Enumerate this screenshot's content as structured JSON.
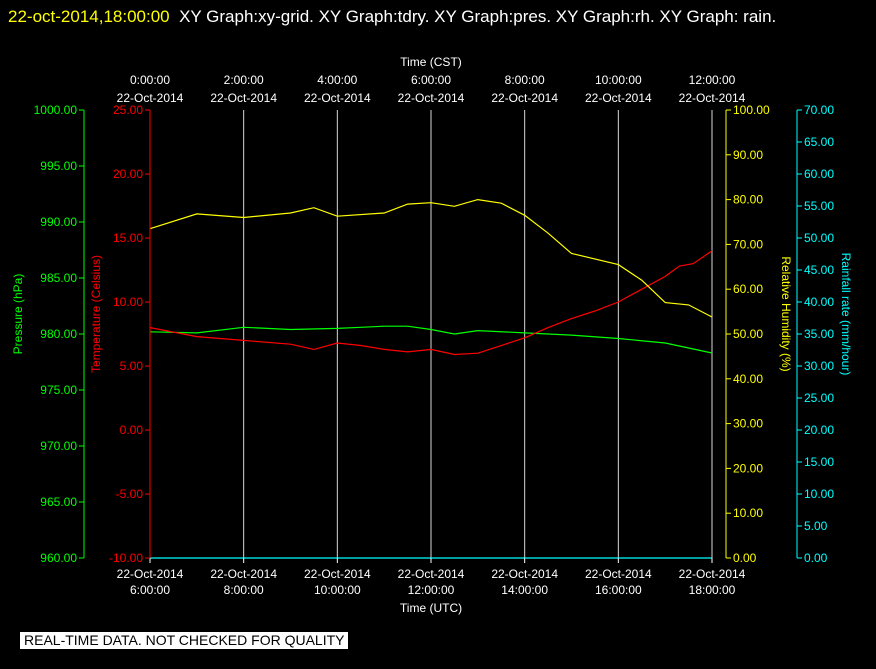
{
  "header": {
    "timestamp": "22-oct-2014,18:00:00",
    "graphs": "XY Graph:xy-grid.  XY Graph:tdry.  XY Graph:pres.  XY Graph:rh.  XY Graph: rain."
  },
  "notice": "REAL-TIME DATA. NOT CHECKED FOR QUALITY",
  "colors": {
    "pressure": "#00ff00",
    "temperature": "#ff0000",
    "humidity": "#ffff00",
    "rainfall": "#00ffff",
    "grid": "#ffffff",
    "background": "#000000"
  },
  "chart_data": {
    "type": "line",
    "x_top": {
      "label": "Time (CST)",
      "ticks": [
        {
          "time": "0:00:00",
          "date": "22-Oct-2014"
        },
        {
          "time": "2:00:00",
          "date": "22-Oct-2014"
        },
        {
          "time": "4:00:00",
          "date": "22-Oct-2014"
        },
        {
          "time": "6:00:00",
          "date": "22-Oct-2014"
        },
        {
          "time": "8:00:00",
          "date": "22-Oct-2014"
        },
        {
          "time": "10:00:00",
          "date": "22-Oct-2014"
        },
        {
          "time": "12:00:00",
          "date": "22-Oct-2014"
        }
      ]
    },
    "x_bottom": {
      "label": "Time (UTC)",
      "ticks": [
        {
          "date": "22-Oct-2014",
          "time": "6:00:00"
        },
        {
          "date": "22-Oct-2014",
          "time": "8:00:00"
        },
        {
          "date": "22-Oct-2014",
          "time": "10:00:00"
        },
        {
          "date": "22-Oct-2014",
          "time": "12:00:00"
        },
        {
          "date": "22-Oct-2014",
          "time": "14:00:00"
        },
        {
          "date": "22-Oct-2014",
          "time": "16:00:00"
        },
        {
          "date": "22-Oct-2014",
          "time": "18:00:00"
        }
      ]
    },
    "axes": {
      "pressure": {
        "label": "Pressure (hPa)",
        "range": [
          960,
          1000
        ],
        "ticks": [
          "960.00",
          "965.00",
          "970.00",
          "975.00",
          "980.00",
          "985.00",
          "990.00",
          "995.00",
          "1000.00"
        ]
      },
      "temperature": {
        "label": "Temperature (Celsius)",
        "range": [
          -10,
          25
        ],
        "ticks": [
          "-10.00",
          "-5.00",
          "0.00",
          "5.00",
          "10.00",
          "15.00",
          "20.00",
          "25.00"
        ]
      },
      "humidity": {
        "label": "Relative Humidity (%)",
        "range": [
          0,
          100
        ],
        "ticks": [
          "0.00",
          "10.00",
          "20.00",
          "30.00",
          "40.00",
          "50.00",
          "60.00",
          "70.00",
          "80.00",
          "90.00",
          "100.00"
        ]
      },
      "rainfall": {
        "label": "Rainfall rate (mm/hour)",
        "range": [
          0,
          70
        ],
        "ticks": [
          "0.00",
          "5.00",
          "10.00",
          "15.00",
          "20.00",
          "25.00",
          "30.00",
          "35.00",
          "40.00",
          "45.00",
          "50.00",
          "55.00",
          "60.00",
          "65.00",
          "70.00"
        ]
      }
    },
    "x_range_utc_hours": [
      6,
      18
    ],
    "grid": true,
    "series": [
      {
        "key": "pressure",
        "axis": "pressure",
        "x": [
          6.0,
          7.0,
          8.0,
          9.0,
          10.0,
          10.5,
          11.0,
          11.5,
          12.0,
          12.5,
          13.0,
          14.0,
          15.0,
          16.0,
          17.0,
          18.0
        ],
        "y": [
          980.2,
          980.1,
          980.6,
          980.4,
          980.5,
          980.6,
          980.7,
          980.7,
          980.4,
          980.0,
          980.3,
          980.1,
          979.9,
          979.6,
          979.2,
          978.3
        ]
      },
      {
        "key": "temperature",
        "axis": "temperature",
        "x": [
          6.0,
          7.0,
          8.0,
          9.0,
          9.5,
          10.0,
          10.5,
          11.0,
          11.5,
          12.0,
          12.5,
          13.0,
          14.0,
          14.5,
          15.0,
          15.5,
          16.0,
          16.5,
          17.0,
          17.3,
          17.6,
          18.0
        ],
        "y": [
          8.0,
          7.3,
          7.0,
          6.7,
          6.3,
          6.8,
          6.6,
          6.3,
          6.1,
          6.3,
          5.9,
          6.0,
          7.2,
          8.0,
          8.7,
          9.3,
          10.0,
          11.0,
          12.0,
          12.8,
          13.0,
          14.0
        ]
      },
      {
        "key": "humidity",
        "axis": "humidity",
        "x": [
          6.0,
          7.0,
          8.0,
          9.0,
          9.5,
          10.0,
          11.0,
          11.5,
          12.0,
          12.5,
          13.0,
          13.5,
          14.0,
          14.5,
          15.0,
          16.0,
          16.5,
          17.0,
          17.5,
          18.0
        ],
        "y": [
          73.5,
          76.8,
          76.0,
          77.0,
          78.2,
          76.3,
          77.0,
          79.0,
          79.3,
          78.5,
          80.0,
          79.2,
          76.5,
          72.5,
          68.0,
          65.5,
          62.0,
          57.0,
          56.5,
          53.8
        ]
      },
      {
        "key": "rainfall",
        "axis": "rainfall",
        "x": [
          6.0,
          18.0
        ],
        "y": [
          0,
          0
        ]
      }
    ]
  }
}
